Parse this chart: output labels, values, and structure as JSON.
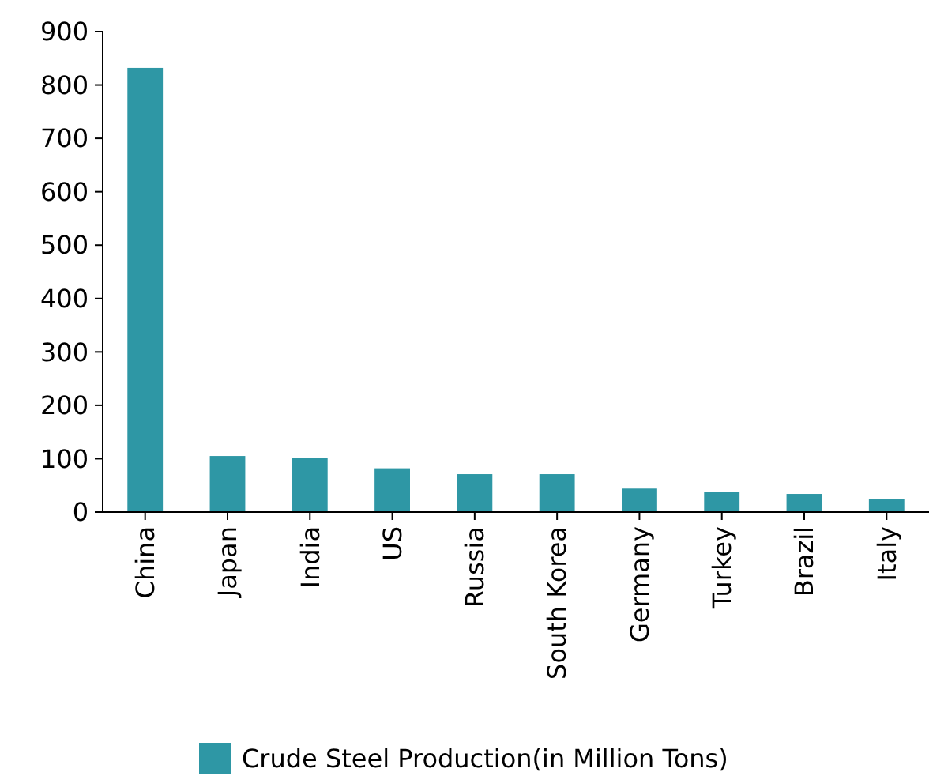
{
  "chart_data": {
    "type": "bar",
    "categories": [
      "China",
      "Japan",
      "India",
      "US",
      "Russia",
      "South Korea",
      "Germany",
      "Turkey",
      "Brazil",
      "Italy"
    ],
    "series": [
      {
        "name": "Crude Steel Production(in Million Tons)",
        "color": "#2e97a5",
        "values": [
          832,
          105,
          101,
          82,
          71,
          71,
          44,
          38,
          34,
          24
        ]
      }
    ],
    "ylim": [
      0,
      900
    ],
    "yticks": [
      0,
      100,
      200,
      300,
      400,
      500,
      600,
      700,
      800,
      900
    ],
    "grid": false,
    "legend": "bottom"
  }
}
